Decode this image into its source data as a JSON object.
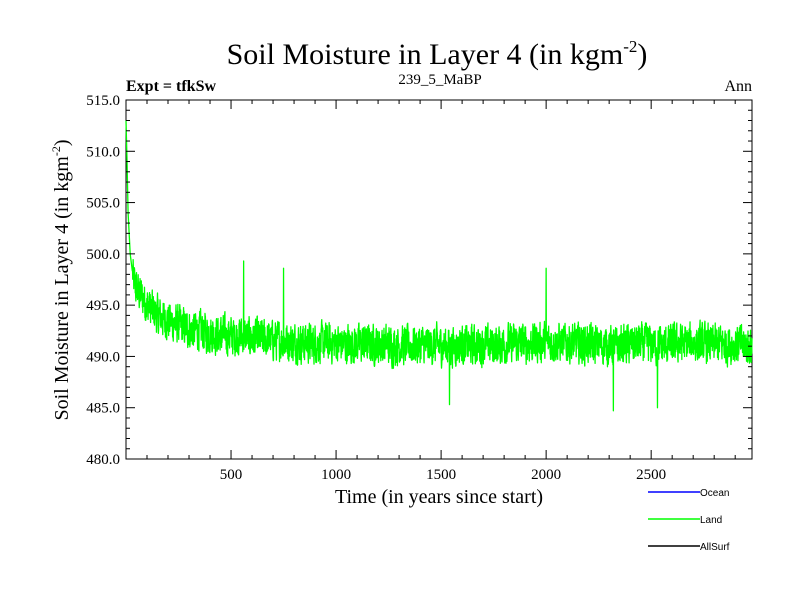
{
  "chart_data": {
    "type": "line",
    "title": "Soil Moisture in Layer 4 (in kgm",
    "title_sup": "-2",
    "title_close": ")",
    "subtitle_left": "Expt = tfkSw",
    "subtitle_center": "239_5_MaBP",
    "subtitle_right": "Ann",
    "xlabel": "Time (in years since start)",
    "ylabel": "Soil Moisture in Layer 4 (in kgm",
    "ylabel_sup": "-2",
    "ylabel_close": ")",
    "xlim": [
      0,
      2980
    ],
    "ylim": [
      480,
      515
    ],
    "x_ticks": [
      500,
      1000,
      1500,
      2000,
      2500
    ],
    "x_tick_labels": [
      "500",
      "1000",
      "1500",
      "2000",
      "2500"
    ],
    "y_ticks": [
      480,
      485,
      490,
      495,
      500,
      505,
      510,
      515
    ],
    "y_tick_labels": [
      "480.0",
      "485.0",
      "490.0",
      "495.0",
      "500.0",
      "505.0",
      "510.0",
      "515.0"
    ],
    "grid": false,
    "legend_position": "below-right",
    "series": [
      {
        "name": "Ocean",
        "color": "#0000ff",
        "x": [],
        "y": []
      },
      {
        "name": "Land",
        "color": "#00ff00",
        "x": [
          0,
          5,
          10,
          20,
          35,
          50,
          70,
          100,
          150,
          200,
          250,
          300,
          350,
          400,
          450,
          500,
          560,
          600,
          700,
          750,
          800,
          900,
          1000,
          1100,
          1200,
          1300,
          1400,
          1500,
          1540,
          1600,
          1700,
          1800,
          1900,
          2000,
          2100,
          2200,
          2300,
          2320,
          2400,
          2500,
          2530,
          2600,
          2700,
          2800,
          2900,
          2980
        ],
        "y": [
          513.0,
          509.0,
          504.0,
          500.0,
          497.5,
          496.5,
          496.0,
          495.0,
          494.0,
          493.5,
          493.0,
          492.7,
          492.5,
          492.3,
          492.1,
          492.0,
          492.0,
          491.8,
          491.6,
          491.5,
          491.4,
          491.3,
          491.3,
          491.2,
          491.2,
          491.1,
          491.1,
          491.1,
          491.0,
          491.1,
          491.1,
          491.2,
          491.3,
          491.4,
          491.3,
          491.2,
          491.1,
          491.0,
          491.2,
          491.2,
          491.0,
          491.2,
          491.3,
          491.2,
          491.2,
          491.0
        ],
        "variability_amplitude": 2.6,
        "spikes": [
          {
            "x": 560,
            "y": 499.3
          },
          {
            "x": 750,
            "y": 498.6
          },
          {
            "x": 2000,
            "y": 498.6
          },
          {
            "x": 1540,
            "y": 485.3
          },
          {
            "x": 2320,
            "y": 484.7
          },
          {
            "x": 2530,
            "y": 485.0
          }
        ]
      },
      {
        "name": "AllSurf",
        "color": "#000000",
        "x": [],
        "y": []
      }
    ]
  }
}
